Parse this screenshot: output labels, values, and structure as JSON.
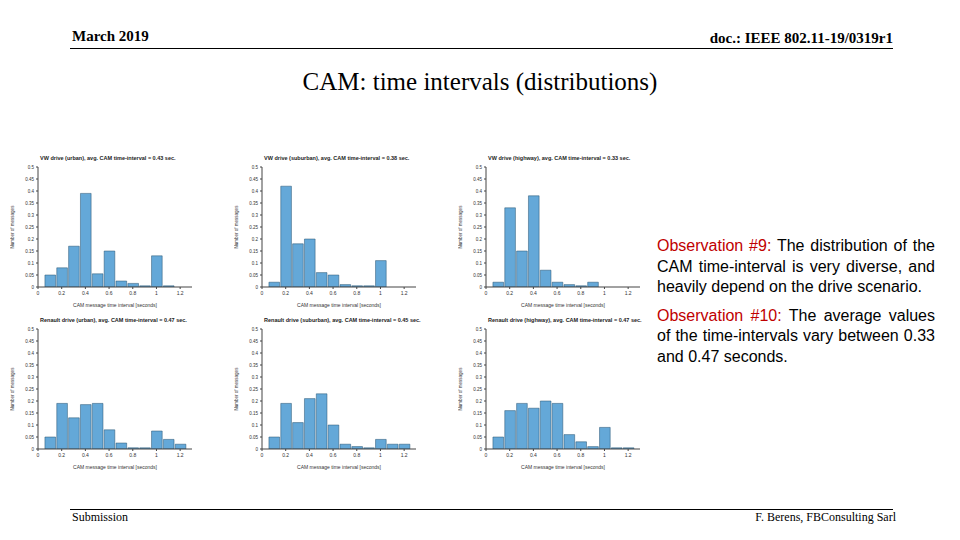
{
  "slide": {
    "header_left": "March 2019",
    "header_right": "doc.: IEEE 802.11-19/0319r1",
    "title": "CAM: time intervals (distributions)",
    "observations": [
      {
        "label": "Observation #9:",
        "text": "The distribution of the CAM time-interval is very diverse, and heavily depend on the drive scenario."
      },
      {
        "label": "Observation #10:",
        "text": "The average values of the time-intervals vary between 0.33 and 0.47 seconds."
      }
    ],
    "footer_left": "Submission",
    "footer_right": "F. Berens, FBConsulting Sarl"
  },
  "chart_data": [
    {
      "type": "histogram",
      "title": "VW drive (urban), avg. CAM time-interval = 0.43 sec.",
      "x_label": "CAM message time interval [seconds]",
      "y_label": "Number of messages",
      "bins": [
        0.05,
        0.15,
        0.25,
        0.35,
        0.45,
        0.55,
        0.65,
        0.75,
        0.85,
        0.95,
        1.05,
        1.15,
        1.25
      ],
      "values": [
        0.05,
        0.08,
        0.17,
        0.39,
        0.055,
        0.15,
        0.025,
        0.015,
        0.005,
        0.13,
        0.005,
        0
      ],
      "color": "#64a8d8",
      "xlim": [
        0,
        1.3
      ],
      "xticks": [
        0,
        0.2,
        0.4,
        0.6,
        0.8,
        1,
        1.2
      ],
      "ylim": [
        0,
        0.5
      ],
      "yticks": [
        0,
        0.05,
        0.1,
        0.15,
        0.2,
        0.25,
        0.3,
        0.35,
        0.4,
        0.45,
        0.5
      ],
      "grid": false
    },
    {
      "type": "histogram",
      "title": "VW drive (suburban), avg. CAM time-interval = 0.38 sec.",
      "x_label": "CAM message time interval [seconds]",
      "y_label": "Number of messages",
      "bins": [
        0.05,
        0.15,
        0.25,
        0.35,
        0.45,
        0.55,
        0.65,
        0.75,
        0.85,
        0.95,
        1.05,
        1.15,
        1.25
      ],
      "values": [
        0.02,
        0.42,
        0.18,
        0.2,
        0.06,
        0.05,
        0.01,
        0.005,
        0.005,
        0.11,
        0,
        0
      ],
      "color": "#64a8d8",
      "xlim": [
        0,
        1.3
      ],
      "xticks": [
        0,
        0.2,
        0.4,
        0.6,
        0.8,
        1,
        1.2
      ],
      "ylim": [
        0,
        0.5
      ],
      "yticks": [
        0,
        0.05,
        0.1,
        0.15,
        0.2,
        0.25,
        0.3,
        0.35,
        0.4,
        0.45,
        0.5
      ],
      "grid": false
    },
    {
      "type": "histogram",
      "title": "VW drive (highway), avg. CAM time-interval = 0.33 sec.",
      "x_label": "CAM message time interval [seconds]",
      "y_label": "Number of messages",
      "bins": [
        0.05,
        0.15,
        0.25,
        0.35,
        0.45,
        0.55,
        0.65,
        0.75,
        0.85,
        0.95,
        1.05,
        1.15,
        1.25
      ],
      "values": [
        0.02,
        0.33,
        0.15,
        0.38,
        0.07,
        0.02,
        0.01,
        0.005,
        0.02,
        0,
        0,
        0
      ],
      "color": "#64a8d8",
      "xlim": [
        0,
        1.3
      ],
      "xticks": [
        0,
        0.2,
        0.4,
        0.6,
        0.8,
        1,
        1.2
      ],
      "ylim": [
        0,
        0.5
      ],
      "yticks": [
        0,
        0.05,
        0.1,
        0.15,
        0.2,
        0.25,
        0.3,
        0.35,
        0.4,
        0.45,
        0.5
      ],
      "grid": false
    },
    {
      "type": "histogram",
      "title": "Renault drive (urban), avg. CAM time-interval = 0.47 sec.",
      "x_label": "CAM message time interval [seconds]",
      "y_label": "Number of messages",
      "bins": [
        0.05,
        0.15,
        0.25,
        0.35,
        0.45,
        0.55,
        0.65,
        0.75,
        0.85,
        0.95,
        1.05,
        1.15,
        1.25
      ],
      "values": [
        0.05,
        0.19,
        0.13,
        0.185,
        0.19,
        0.08,
        0.025,
        0.005,
        0.005,
        0.075,
        0.04,
        0.02
      ],
      "color": "#64a8d8",
      "xlim": [
        0,
        1.3
      ],
      "xticks": [
        0,
        0.2,
        0.4,
        0.6,
        0.8,
        1,
        1.2
      ],
      "ylim": [
        0,
        0.5
      ],
      "yticks": [
        0,
        0.05,
        0.1,
        0.15,
        0.2,
        0.25,
        0.3,
        0.35,
        0.4,
        0.45,
        0.5
      ],
      "grid": false
    },
    {
      "type": "histogram",
      "title": "Renault drive (suburban), avg. CAM time-interval = 0.45 sec.",
      "x_label": "CAM message time interval [seconds]",
      "y_label": "Number of messages",
      "bins": [
        0.05,
        0.15,
        0.25,
        0.35,
        0.45,
        0.55,
        0.65,
        0.75,
        0.85,
        0.95,
        1.05,
        1.15,
        1.25
      ],
      "values": [
        0.05,
        0.19,
        0.11,
        0.21,
        0.23,
        0.1,
        0.02,
        0.01,
        0.005,
        0.04,
        0.02,
        0.02
      ],
      "color": "#64a8d8",
      "xlim": [
        0,
        1.3
      ],
      "xticks": [
        0,
        0.2,
        0.4,
        0.6,
        0.8,
        1,
        1.2
      ],
      "ylim": [
        0,
        0.5
      ],
      "yticks": [
        0,
        0.05,
        0.1,
        0.15,
        0.2,
        0.25,
        0.3,
        0.35,
        0.4,
        0.45,
        0.5
      ],
      "grid": false
    },
    {
      "type": "histogram",
      "title": "Renault drive (highway), avg. CAM time-interval = 0.47 sec.",
      "x_label": "CAM message time interval [seconds]",
      "y_label": "Number of messages",
      "bins": [
        0.05,
        0.15,
        0.25,
        0.35,
        0.45,
        0.55,
        0.65,
        0.75,
        0.85,
        0.95,
        1.05,
        1.15,
        1.25
      ],
      "values": [
        0.05,
        0.16,
        0.19,
        0.17,
        0.2,
        0.19,
        0.06,
        0.03,
        0.01,
        0.09,
        0.005,
        0.005
      ],
      "color": "#64a8d8",
      "xlim": [
        0,
        1.3
      ],
      "xticks": [
        0,
        0.2,
        0.4,
        0.6,
        0.8,
        1,
        1.2
      ],
      "ylim": [
        0,
        0.5
      ],
      "yticks": [
        0,
        0.05,
        0.1,
        0.15,
        0.2,
        0.25,
        0.3,
        0.35,
        0.4,
        0.45,
        0.5
      ],
      "grid": false
    }
  ]
}
